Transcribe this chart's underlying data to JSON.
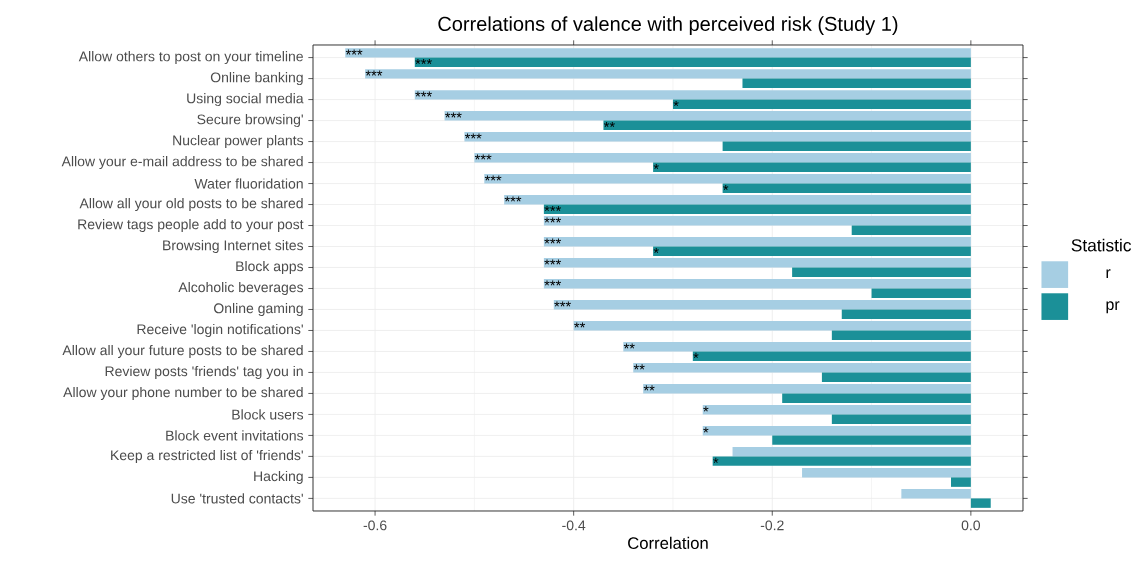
{
  "chart_data": {
    "type": "bar",
    "orientation": "horizontal",
    "title": "Correlations of valence with perceived risk (Study 1)",
    "xlabel": "Correlation",
    "legend_title": "Statistic",
    "categories": [
      "Allow others to post on your timeline",
      "Online banking",
      "Using social media",
      "Secure browsing'",
      "Nuclear power plants",
      "Allow your e-mail address to be shared",
      "Water fluoridation",
      "Allow all your old posts to be shared",
      "Review tags people add to your post",
      "Browsing Internet sites",
      "Block apps",
      "Alcoholic beverages",
      "Online gaming",
      "Receive 'login notifications'",
      "Allow all your future posts to be shared",
      "Review posts 'friends' tag you in",
      "Allow your phone number to be shared",
      "Block users",
      "Block event invitations",
      "Keep a restricted list of 'friends'",
      "Hacking",
      "Use 'trusted contacts'"
    ],
    "series": [
      {
        "name": "r",
        "color": "#a6cee3",
        "values": [
          -0.63,
          -0.61,
          -0.56,
          -0.53,
          -0.51,
          -0.5,
          -0.49,
          -0.47,
          -0.43,
          -0.43,
          -0.43,
          -0.43,
          -0.42,
          -0.4,
          -0.35,
          -0.34,
          -0.33,
          -0.27,
          -0.27,
          -0.24,
          -0.17,
          -0.07
        ],
        "value_labels": [
          "***",
          "***",
          "***",
          "***",
          "***",
          "***",
          "***",
          "***",
          "***",
          "***",
          "***",
          "***",
          "***",
          "**",
          "**",
          "**",
          "**",
          "*",
          "*",
          null,
          null,
          null
        ]
      },
      {
        "name": "pr",
        "color": "#1b9098",
        "values": [
          -0.56,
          -0.23,
          -0.3,
          -0.37,
          -0.25,
          -0.32,
          -0.25,
          -0.43,
          -0.12,
          -0.32,
          -0.18,
          -0.1,
          -0.13,
          -0.14,
          -0.28,
          -0.15,
          -0.19,
          -0.14,
          -0.2,
          -0.26,
          -0.02,
          0.02
        ],
        "value_labels": [
          "***",
          null,
          "*",
          "**",
          null,
          "*",
          "*",
          "***",
          null,
          "*",
          null,
          null,
          null,
          null,
          "*",
          null,
          null,
          null,
          null,
          "*",
          null,
          null
        ]
      }
    ],
    "xlim": [
      -0.6625,
      0.0525
    ],
    "xticks": [
      -0.6,
      -0.4,
      -0.2,
      {
        "value": 0,
        "label": "0.0"
      }
    ],
    "grid": true,
    "legend": "right"
  }
}
